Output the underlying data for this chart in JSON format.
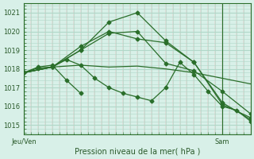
{
  "bg_color": "#d8f0e8",
  "grid_color": "#b0d8c8",
  "line_color": "#2a6e2a",
  "marker_color": "#2a6e2a",
  "ylabel_ticks": [
    1015,
    1016,
    1017,
    1018,
    1019,
    1020,
    1021
  ],
  "xlabel_left": "Jeu/Ven",
  "xlabel_right": "Sam",
  "xlabel_bottom": "Pression niveau de la mer( hPa )",
  "xlim": [
    0,
    48
  ],
  "ylim": [
    1014.5,
    1021.5
  ],
  "series": [
    {
      "x": [
        0,
        6,
        12,
        18,
        24,
        30,
        36,
        42,
        48
      ],
      "y": [
        1017.8,
        1018.1,
        1018.2,
        1018.1,
        1018.15,
        1018.0,
        1017.8,
        1017.5,
        1017.2
      ],
      "with_markers": false
    },
    {
      "x": [
        0,
        6,
        12,
        18,
        24,
        30,
        36,
        42,
        48
      ],
      "y": [
        1017.8,
        1018.1,
        1019.0,
        1019.9,
        1020.0,
        1018.3,
        1017.9,
        1016.8,
        1015.6
      ],
      "with_markers": true
    },
    {
      "x": [
        0,
        6,
        12,
        18,
        24,
        30,
        36,
        42,
        48
      ],
      "y": [
        1017.8,
        1018.1,
        1019.2,
        1020.0,
        1019.6,
        1019.4,
        1018.35,
        1016.1,
        1015.4
      ],
      "with_markers": true
    },
    {
      "x": [
        0,
        6,
        12,
        18,
        24,
        30,
        36,
        42,
        48
      ],
      "y": [
        1017.8,
        1018.1,
        1019.0,
        1020.5,
        1021.0,
        1019.5,
        1018.35,
        1016.2,
        1015.3
      ],
      "with_markers": true
    },
    {
      "x": [
        0,
        3,
        6,
        9,
        12,
        15,
        18,
        21,
        24,
        27,
        30,
        33,
        36,
        39,
        42,
        45,
        48
      ],
      "y": [
        1017.8,
        1018.05,
        1018.1,
        1018.5,
        1018.2,
        1017.5,
        1017.0,
        1016.7,
        1016.5,
        1016.3,
        1017.0,
        1018.35,
        1017.7,
        1016.8,
        1016.0,
        1015.8,
        1015.2
      ],
      "with_markers": true
    },
    {
      "x": [
        0,
        3,
        6,
        9,
        12
      ],
      "y": [
        1017.8,
        1018.1,
        1018.2,
        1017.4,
        1016.7
      ],
      "with_markers": true
    }
  ]
}
